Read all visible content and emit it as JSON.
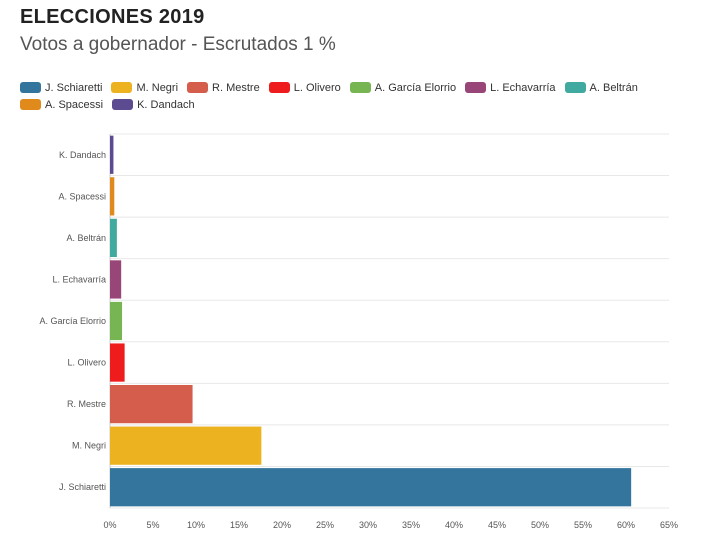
{
  "header": {
    "title": "ELECCIONES 2019",
    "subtitle": "Votos a gobernador - Escrutados 1 %"
  },
  "chart_data": {
    "type": "bar",
    "orientation": "horizontal",
    "categories": [
      "J. Schiaretti",
      "M. Negri",
      "R. Mestre",
      "L. Olivero",
      "A. García Elorrio",
      "L. Echavarría",
      "A. Beltrán",
      "A. Spacessi",
      "K. Dandach"
    ],
    "values": [
      60.6,
      17.6,
      9.6,
      1.7,
      1.4,
      1.3,
      0.8,
      0.5,
      0.4
    ],
    "colors": [
      "#34759e",
      "#ecb21f",
      "#d45d4c",
      "#ee1c1c",
      "#77b553",
      "#984577",
      "#41aaa0",
      "#e08a1b",
      "#5d4b91"
    ],
    "xlim": [
      0,
      65
    ],
    "xticks": [
      "0%",
      "5%",
      "10%",
      "15%",
      "20%",
      "25%",
      "30%",
      "35%",
      "40%",
      "45%",
      "50%",
      "55%",
      "60%",
      "65%"
    ],
    "grid": true,
    "legend_position": "top"
  }
}
